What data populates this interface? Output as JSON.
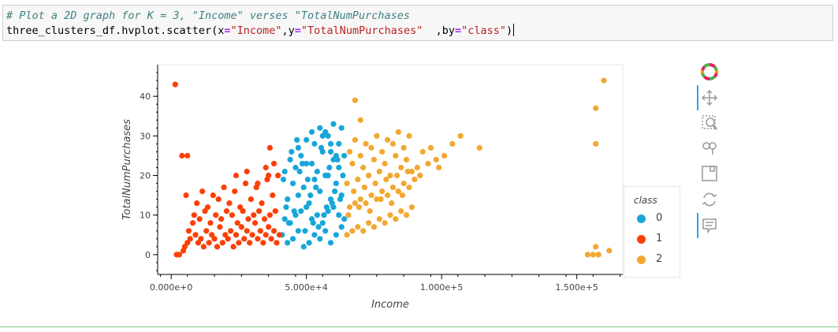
{
  "code": {
    "comment": "# Plot a 2D graph for K = 3, \"Income\" verses \"TotalNumPurchases",
    "line2_prefix": "three_clusters_df.hvplot.scatter(x",
    "eq": "=",
    "x_str": "\"Income\"",
    "comma1": ",y",
    "y_str": "\"TotalNumPurchases\"",
    "mid": "  ,by",
    "by_str": "\"class\"",
    "suffix": ")"
  },
  "toolbar": {
    "tools": [
      "bokeh-logo",
      "pan",
      "box-zoom",
      "wheel-zoom",
      "save",
      "reset",
      "hover"
    ]
  },
  "chart_data": {
    "type": "scatter",
    "xlabel": "Income",
    "ylabel": "TotalNumPurchases",
    "xlim": [
      -5000,
      167000
    ],
    "ylim": [
      -5,
      48
    ],
    "x_ticks": [
      0,
      50000,
      100000,
      150000
    ],
    "x_tick_labels": [
      "0.000e+0",
      "5.000e+4",
      "1.000e+5",
      "1.500e+5"
    ],
    "y_ticks": [
      0,
      10,
      20,
      30,
      40
    ],
    "y_tick_labels": [
      "0",
      "10",
      "20",
      "30",
      "40"
    ],
    "legend": {
      "title": "class",
      "position": "right",
      "entries": [
        "0",
        "1",
        "2"
      ]
    },
    "colors": {
      "0": "#18a6d8",
      "1": "#fb4007",
      "2": "#f2a832"
    },
    "series": [
      {
        "name": "0",
        "x": [
          41000,
          43000,
          45000,
          47000,
          49000,
          51000,
          53000,
          55000,
          57000,
          59000,
          61000,
          63000,
          42000,
          44000,
          46000,
          48000,
          50000,
          52000,
          54000,
          56000,
          58000,
          60000,
          62000,
          64000,
          43000,
          47000,
          51000,
          55000,
          59000,
          63000,
          45000,
          49000,
          53000,
          57000,
          61000,
          42000,
          46000,
          50000,
          54000,
          58000,
          62000,
          44000,
          48000,
          52000,
          56000,
          60000,
          64000,
          47000,
          53000,
          59000,
          50000,
          56000,
          62000,
          52000,
          58000,
          55000,
          41500,
          45500,
          49500,
          53500,
          57500,
          61500,
          43500,
          47500,
          51500,
          55500,
          59500,
          63500,
          42500,
          48500,
          54500,
          60500,
          44500,
          50500,
          56500,
          62500,
          46500,
          52500,
          58500,
          57000,
          60000,
          63000,
          59000,
          61000
        ],
        "y": [
          5,
          3,
          4,
          6,
          2,
          3,
          5,
          4,
          6,
          3,
          5,
          7,
          9,
          8,
          10,
          11,
          12,
          9,
          10,
          8,
          11,
          12,
          10,
          9,
          14,
          15,
          13,
          16,
          14,
          15,
          18,
          17,
          19,
          20,
          18,
          21,
          22,
          23,
          21,
          20,
          22,
          24,
          25,
          23,
          26,
          24,
          25,
          27,
          28,
          26,
          29,
          30,
          28,
          31,
          30,
          32,
          19,
          11,
          6,
          17,
          12,
          24,
          8,
          21,
          15,
          27,
          13,
          20,
          12,
          23,
          7,
          16,
          26,
          19,
          10,
          14,
          29,
          8,
          22,
          31,
          33,
          32,
          28,
          25
        ]
      },
      {
        "name": "1",
        "x": [
          2000,
          3000,
          4500,
          5000,
          6000,
          7000,
          6500,
          8000,
          9000,
          10000,
          11000,
          12000,
          13000,
          14000,
          15000,
          16000,
          17000,
          18000,
          19000,
          20000,
          21000,
          22000,
          23000,
          24000,
          25000,
          26000,
          27000,
          28000,
          29000,
          30000,
          31000,
          32000,
          33000,
          34000,
          35000,
          36000,
          37000,
          38000,
          39000,
          40000,
          8500,
          10500,
          12500,
          14500,
          16500,
          18500,
          20500,
          22500,
          24500,
          26500,
          28500,
          30500,
          32500,
          34500,
          36500,
          38500,
          9500,
          13500,
          17500,
          21500,
          25500,
          29500,
          33500,
          37500,
          11500,
          15500,
          19500,
          23500,
          27500,
          31500,
          35500,
          39500,
          24000,
          28000,
          32000,
          36000,
          35000,
          38000,
          36500,
          1500,
          4000,
          6000,
          5500
        ],
        "y": [
          0,
          0,
          1,
          2,
          3,
          4,
          6,
          8,
          5,
          3,
          4,
          2,
          6,
          3,
          5,
          4,
          2,
          7,
          3,
          5,
          4,
          6,
          2,
          5,
          3,
          7,
          4,
          6,
          3,
          5,
          8,
          4,
          6,
          3,
          5,
          7,
          4,
          6,
          3,
          5,
          10,
          9,
          11,
          8,
          10,
          9,
          11,
          10,
          8,
          11,
          9,
          10,
          11,
          9,
          10,
          11,
          13,
          12,
          14,
          13,
          12,
          14,
          13,
          15,
          16,
          15,
          17,
          16,
          18,
          17,
          19,
          20,
          20,
          21,
          18,
          20,
          22,
          23,
          27,
          43,
          25,
          25,
          15
        ],
        "extra_x": [],
        "extra_y": []
      },
      {
        "name": "2",
        "x": [
          65000,
          67000,
          69000,
          71000,
          73000,
          75000,
          77000,
          79000,
          81000,
          83000,
          85000,
          87000,
          89000,
          66000,
          68000,
          70000,
          72000,
          74000,
          76000,
          78000,
          80000,
          82000,
          84000,
          86000,
          88000,
          90000,
          65000,
          69000,
          73000,
          77000,
          81000,
          85000,
          89000,
          67000,
          71000,
          75000,
          79000,
          83000,
          87000,
          91000,
          66000,
          70000,
          74000,
          78000,
          82000,
          86000,
          68000,
          72000,
          76000,
          80000,
          84000,
          88000,
          92000,
          95000,
          98000,
          101000,
          104000,
          107000,
          65500,
          69500,
          73500,
          77500,
          81500,
          85500,
          67500,
          71500,
          75500,
          79500,
          83500,
          87500,
          93000,
          96000,
          99000,
          114000,
          68000,
          70000,
          160000,
          157000,
          157000,
          157000,
          158000,
          162000,
          158000,
          156000,
          154000
        ],
        "y": [
          5,
          6,
          7,
          6,
          8,
          7,
          9,
          8,
          10,
          9,
          11,
          10,
          12,
          12,
          13,
          14,
          13,
          15,
          14,
          16,
          15,
          17,
          16,
          18,
          17,
          19,
          18,
          19,
          20,
          21,
          20,
          22,
          21,
          23,
          22,
          24,
          23,
          25,
          24,
          22,
          26,
          25,
          27,
          26,
          28,
          27,
          29,
          28,
          30,
          29,
          31,
          30,
          20,
          23,
          24,
          25,
          28,
          30,
          10,
          12,
          11,
          14,
          13,
          15,
          16,
          17,
          18,
          19,
          20,
          21,
          26,
          27,
          22,
          27,
          39,
          34,
          44,
          37,
          28,
          2,
          0,
          1,
          0,
          0,
          0
        ]
      }
    ]
  }
}
